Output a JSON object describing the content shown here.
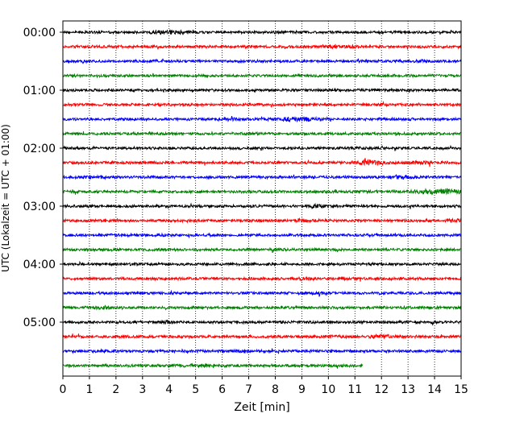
{
  "chart_data": {
    "type": "line",
    "subtype": "helicorder",
    "xlabel": "Zeit  [min]",
    "ylabel": "UTC (Lokalzeit = UTC + 01:00)",
    "xlim": [
      0,
      15
    ],
    "x_ticks": [
      "0",
      "1",
      "2",
      "3",
      "4",
      "5",
      "6",
      "7",
      "8",
      "9",
      "10",
      "11",
      "12",
      "13",
      "14",
      "15"
    ],
    "y_ticks": [
      "00:00",
      "01:00",
      "02:00",
      "03:00",
      "04:00",
      "05:00"
    ],
    "traces_per_hour": 4,
    "minutes_per_trace": 15,
    "grid": "vertical dotted",
    "colors": [
      "#000000",
      "#ff0000",
      "#0000ff",
      "#008000"
    ],
    "series": [
      {
        "start": "00:00",
        "color": "#000000",
        "end_min": 15,
        "events": [
          [
            4.0,
            2.0,
            0.6
          ]
        ]
      },
      {
        "start": "00:15",
        "color": "#ff0000",
        "end_min": 15,
        "events": [
          [
            10.1,
            2.2,
            0.3
          ],
          [
            11.0,
            1.5,
            0.3
          ]
        ]
      },
      {
        "start": "00:30",
        "color": "#0000ff",
        "end_min": 15,
        "events": [
          [
            13.6,
            1.8,
            0.2
          ]
        ]
      },
      {
        "start": "00:45",
        "color": "#008000",
        "end_min": 15,
        "events": []
      },
      {
        "start": "01:00",
        "color": "#000000",
        "end_min": 15,
        "events": []
      },
      {
        "start": "01:15",
        "color": "#ff0000",
        "end_min": 15,
        "events": []
      },
      {
        "start": "01:30",
        "color": "#0000ff",
        "end_min": 15,
        "events": [
          [
            8.8,
            2.0,
            0.8
          ],
          [
            6.2,
            1.4,
            0.5
          ]
        ]
      },
      {
        "start": "01:45",
        "color": "#008000",
        "end_min": 15,
        "events": []
      },
      {
        "start": "02:00",
        "color": "#000000",
        "end_min": 15,
        "events": [
          [
            11.0,
            1.5,
            0.3
          ]
        ]
      },
      {
        "start": "02:15",
        "color": "#ff0000",
        "end_min": 15,
        "events": [
          [
            11.5,
            2.2,
            0.7
          ],
          [
            13.5,
            1.6,
            0.5
          ]
        ]
      },
      {
        "start": "02:30",
        "color": "#0000ff",
        "end_min": 15,
        "events": [
          [
            1.2,
            1.6,
            0.4
          ],
          [
            12.7,
            1.6,
            0.6
          ]
        ]
      },
      {
        "start": "02:45",
        "color": "#008000",
        "end_min": 15,
        "events": [
          [
            14.2,
            2.4,
            0.8
          ]
        ]
      },
      {
        "start": "03:00",
        "color": "#000000",
        "end_min": 15,
        "events": [
          [
            9.6,
            1.7,
            0.3
          ]
        ]
      },
      {
        "start": "03:15",
        "color": "#ff0000",
        "end_min": 15,
        "events": [
          [
            9.0,
            1.6,
            0.4
          ],
          [
            14.8,
            1.8,
            0.3
          ]
        ]
      },
      {
        "start": "03:30",
        "color": "#0000ff",
        "end_min": 15,
        "events": []
      },
      {
        "start": "03:45",
        "color": "#008000",
        "end_min": 15,
        "events": []
      },
      {
        "start": "04:00",
        "color": "#000000",
        "end_min": 15,
        "events": []
      },
      {
        "start": "04:15",
        "color": "#ff0000",
        "end_min": 15,
        "events": [
          [
            9.2,
            1.6,
            0.4
          ]
        ]
      },
      {
        "start": "04:30",
        "color": "#0000ff",
        "end_min": 15,
        "events": [
          [
            9.7,
            1.5,
            0.3
          ]
        ]
      },
      {
        "start": "04:45",
        "color": "#008000",
        "end_min": 15,
        "events": [
          [
            1.6,
            1.6,
            0.4
          ]
        ]
      },
      {
        "start": "05:00",
        "color": "#000000",
        "end_min": 15,
        "events": [
          [
            4.0,
            1.5,
            0.3
          ],
          [
            14.0,
            1.6,
            0.3
          ]
        ]
      },
      {
        "start": "05:15",
        "color": "#ff0000",
        "end_min": 15,
        "events": [
          [
            12.0,
            2.2,
            0.3
          ],
          [
            10.2,
            1.4,
            0.3
          ]
        ]
      },
      {
        "start": "05:30",
        "color": "#0000ff",
        "end_min": 15,
        "events": [
          [
            1.5,
            1.5,
            0.3
          ],
          [
            6.8,
            1.5,
            0.3
          ]
        ]
      },
      {
        "start": "05:45",
        "color": "#008000",
        "end_min": 11.3,
        "events": [
          [
            5.0,
            1.4,
            0.5
          ]
        ]
      }
    ]
  }
}
